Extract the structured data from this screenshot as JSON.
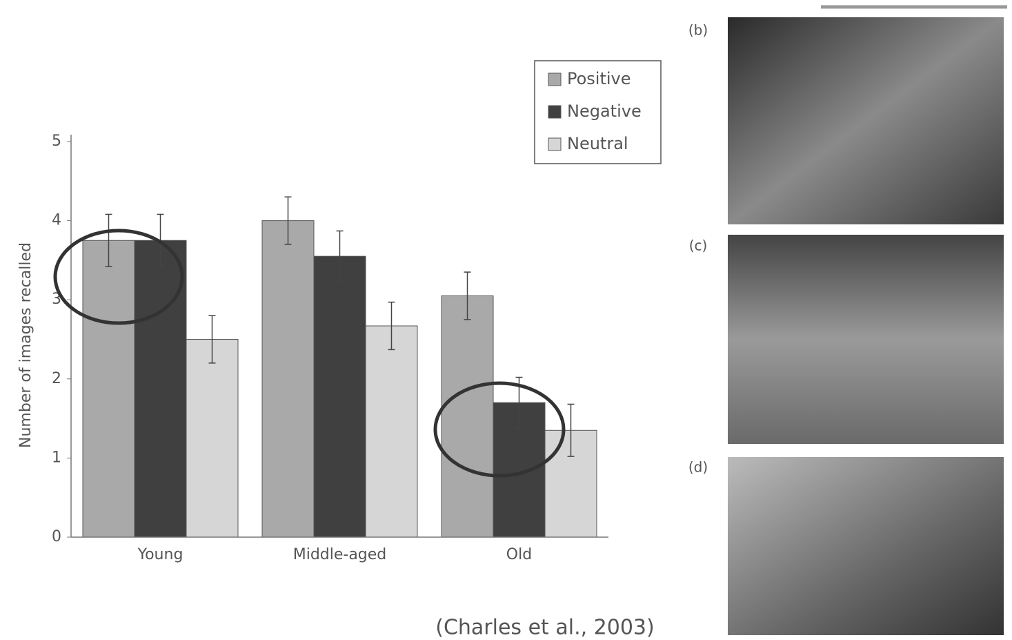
{
  "chart_data": {
    "type": "grouped-bar-error",
    "y_label": "Number of images recalled",
    "categories": [
      "Young",
      "Middle-aged",
      "Old"
    ],
    "series": [
      {
        "name": "Positive",
        "color": "#a9a9a9",
        "values": [
          3.75,
          4.0,
          3.05
        ],
        "errors": [
          0.33,
          0.3,
          0.3
        ]
      },
      {
        "name": "Negative",
        "color": "#404040",
        "values": [
          3.75,
          3.55,
          1.7
        ],
        "errors": [
          0.33,
          0.32,
          0.32
        ]
      },
      {
        "name": "Neutral",
        "color": "#d6d6d6",
        "values": [
          2.5,
          2.67,
          1.35
        ],
        "errors": [
          0.3,
          0.3,
          0.33
        ]
      }
    ],
    "ylim": [
      0,
      5
    ],
    "yticks": [
      0,
      1,
      2,
      3,
      4,
      5
    ],
    "grid": false
  },
  "citation": "(Charles et al., 2003)",
  "photo_labels": [
    "(b)",
    "(c)",
    "(d)"
  ]
}
